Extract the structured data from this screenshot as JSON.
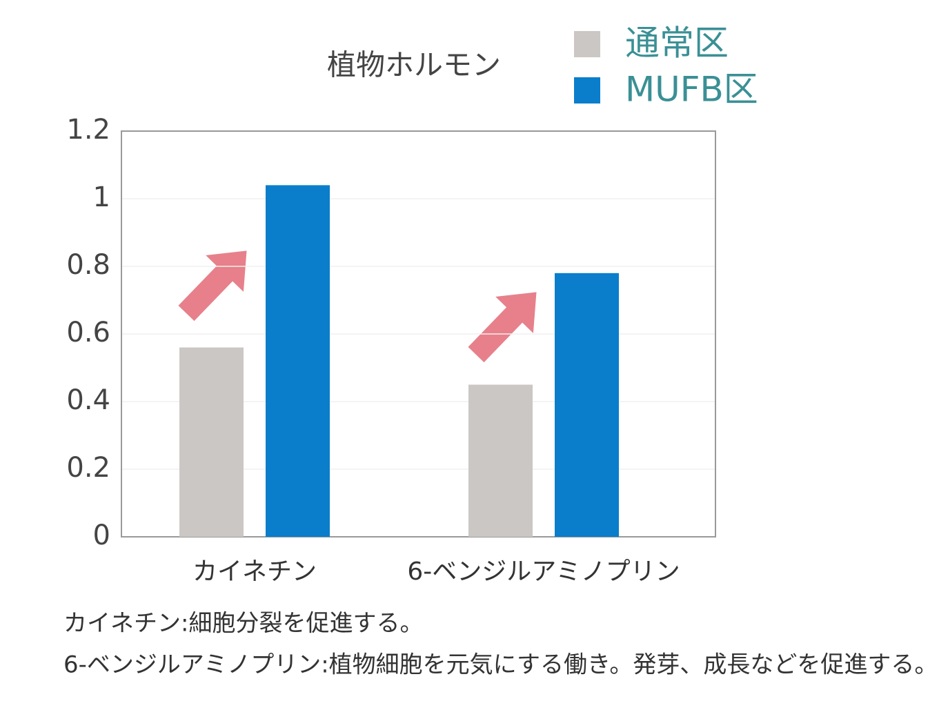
{
  "chart_data": {
    "type": "bar",
    "title": "植物ホルモン",
    "categories": [
      "カイネチン",
      "6-ベンジルアミノプリン"
    ],
    "series": [
      {
        "name": "通常区",
        "color": "#cbc7c4",
        "values": [
          0.56,
          0.45
        ]
      },
      {
        "name": "MUFB区",
        "color": "#0a7ecb",
        "values": [
          1.04,
          0.78
        ]
      }
    ],
    "ylim": [
      0,
      1.2
    ],
    "yticks": [
      0,
      0.2,
      0.4,
      0.6,
      0.8,
      1,
      1.2
    ],
    "grid": true
  },
  "notes": [
    "カイネチン:細胞分裂を促進する。",
    "6-ベンジルアミノプリン:植物細胞を元気にする働き。発芽、成長などを促進する。"
  ]
}
